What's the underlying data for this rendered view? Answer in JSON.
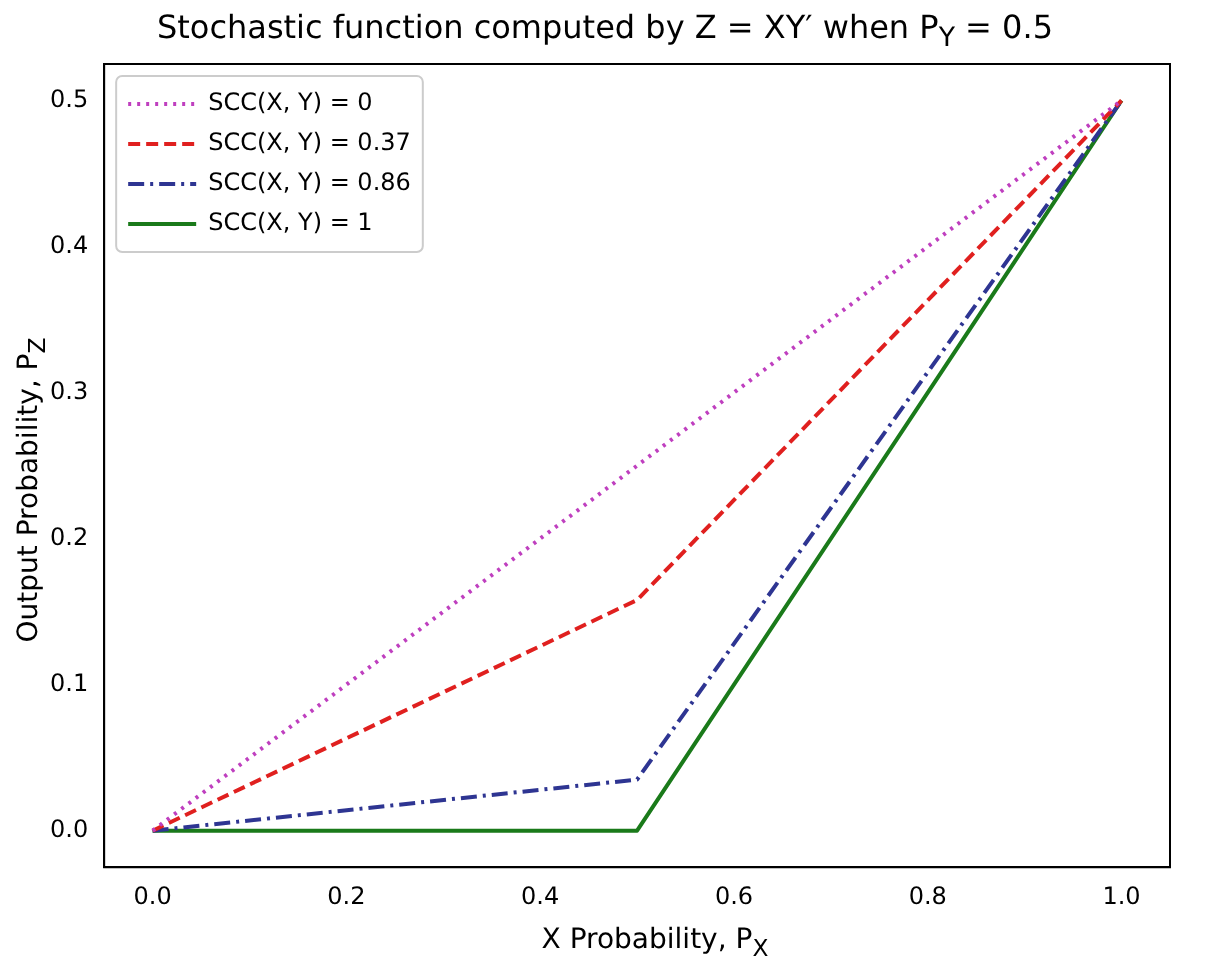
{
  "chart_data": {
    "type": "line",
    "title": "Stochastic function computed by Z = XY′ when P$_{Y}$ = 0.5",
    "xlabel": "X Probability, P$_{X}$",
    "ylabel": "Output Probability, P$_{Z}$",
    "x": [
      0,
      0.5,
      1
    ],
    "series": [
      {
        "name": "SCC(X, Y) = 0",
        "color": "#bf3fbf",
        "line_style": "dotted",
        "values": [
          0,
          0.25,
          0.5
        ]
      },
      {
        "name": "SCC(X, Y) = 0.37",
        "color": "#e0201f",
        "line_style": "dashed",
        "values": [
          0,
          0.158,
          0.5
        ]
      },
      {
        "name": "SCC(X, Y) = 0.86",
        "color": "#2e3592",
        "line_style": "dashdot",
        "values": [
          0,
          0.035,
          0.5
        ]
      },
      {
        "name": "SCC(X, Y) = 1",
        "color": "#1a7a1a",
        "line_style": "solid",
        "values": [
          0,
          0,
          0.5
        ]
      }
    ],
    "xlim": [
      -0.05,
      1.05
    ],
    "ylim": [
      -0.025,
      0.525
    ],
    "xticks": [
      {
        "value": 0,
        "label": "0.0"
      },
      {
        "value": 0.2,
        "label": "0.2"
      },
      {
        "value": 0.4,
        "label": "0.4"
      },
      {
        "value": 0.6,
        "label": "0.6"
      },
      {
        "value": 0.8,
        "label": "0.8"
      },
      {
        "value": 1,
        "label": "1.0"
      }
    ],
    "yticks": [
      {
        "value": 0,
        "label": "0.0"
      },
      {
        "value": 0.1,
        "label": "0.1"
      },
      {
        "value": 0.2,
        "label": "0.2"
      },
      {
        "value": 0.3,
        "label": "0.3"
      },
      {
        "value": 0.4,
        "label": "0.4"
      },
      {
        "value": 0.5,
        "label": "0.5"
      }
    ],
    "grid": false,
    "legend": "top left",
    "marker": "none"
  }
}
